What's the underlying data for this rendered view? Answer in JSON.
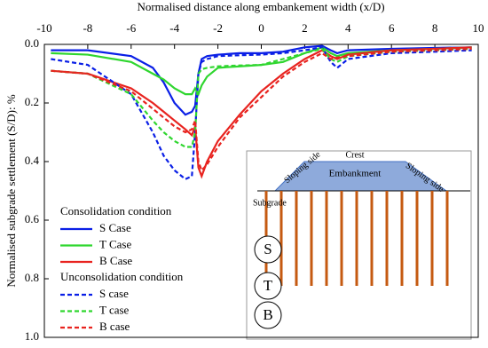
{
  "chart_data": {
    "type": "line",
    "x_label": "Normalised distance along embankement width (x/D)",
    "y_label": "Normalised subgrade settlement (S/D): %",
    "xlim": [
      -10,
      10
    ],
    "xticks": [
      -10,
      -8,
      -6,
      -4,
      -2,
      0,
      2,
      4,
      6,
      8,
      10
    ],
    "ylim": [
      0,
      1
    ],
    "y_inverted": true,
    "yticks": [
      {
        "value": 0,
        "label": "0.0"
      },
      0.2,
      0.4,
      0.6,
      0.8,
      {
        "value": 1,
        "label": "1.0"
      }
    ],
    "legend_titles": [
      "Consolidation condition",
      "Unconsolidation condition"
    ],
    "x": [
      -9.7,
      -8,
      -6,
      -5,
      -4.5,
      -4,
      -3.5,
      -3.2,
      -3.05,
      -2.9,
      -2.75,
      -2.5,
      -2,
      -1,
      0,
      1,
      2,
      2.8,
      3.2,
      3.5,
      4,
      6,
      8,
      9.7
    ],
    "series": [
      {
        "name": "S Case",
        "color": "#0a1fe6",
        "dash": false,
        "values": [
          0.02,
          0.02,
          0.04,
          0.08,
          0.13,
          0.2,
          0.24,
          0.23,
          0.21,
          0.1,
          0.05,
          0.04,
          0.035,
          0.03,
          0.03,
          0.025,
          0.01,
          0.005,
          0.02,
          0.03,
          0.02,
          0.015,
          0.012,
          0.01
        ]
      },
      {
        "name": "T Case",
        "color": "#2fd62f",
        "dash": false,
        "values": [
          0.03,
          0.035,
          0.06,
          0.1,
          0.12,
          0.15,
          0.17,
          0.17,
          0.15,
          0.17,
          0.14,
          0.11,
          0.08,
          0.075,
          0.07,
          0.06,
          0.03,
          0.01,
          0.03,
          0.04,
          0.03,
          0.02,
          0.015,
          0.01
        ]
      },
      {
        "name": "B Case",
        "color": "#e8231f",
        "dash": false,
        "values": [
          0.09,
          0.1,
          0.15,
          0.2,
          0.23,
          0.26,
          0.29,
          0.31,
          0.28,
          0.42,
          0.45,
          0.4,
          0.33,
          0.24,
          0.16,
          0.1,
          0.05,
          0.02,
          0.04,
          0.05,
          0.035,
          0.02,
          0.015,
          0.01
        ]
      },
      {
        "name": "S case",
        "color": "#0a1fe6",
        "dash": true,
        "values": [
          0.05,
          0.07,
          0.17,
          0.3,
          0.38,
          0.43,
          0.46,
          0.45,
          0.3,
          0.1,
          0.06,
          0.05,
          0.04,
          0.037,
          0.035,
          0.03,
          0.02,
          0.01,
          0.06,
          0.08,
          0.05,
          0.03,
          0.025,
          0.02
        ]
      },
      {
        "name": "T case",
        "color": "#2fd62f",
        "dash": true,
        "values": [
          0.09,
          0.1,
          0.17,
          0.26,
          0.3,
          0.33,
          0.35,
          0.35,
          0.3,
          0.1,
          0.085,
          0.08,
          0.075,
          0.072,
          0.07,
          0.05,
          0.03,
          0.015,
          0.05,
          0.06,
          0.04,
          0.025,
          0.02,
          0.015
        ]
      },
      {
        "name": "B case",
        "color": "#e8231f",
        "dash": true,
        "values": [
          0.09,
          0.1,
          0.16,
          0.22,
          0.25,
          0.28,
          0.3,
          0.29,
          0.26,
          0.4,
          0.43,
          0.41,
          0.35,
          0.25,
          0.18,
          0.11,
          0.06,
          0.03,
          0.05,
          0.045,
          0.04,
          0.025,
          0.02,
          0.015
        ]
      }
    ],
    "inset": {
      "crest": "Crest",
      "embankment": "Embankment",
      "slope_left": "Sloping side",
      "slope_right": "Sloping side",
      "subgrade": "Subgrade",
      "circles": [
        "S",
        "T",
        "B"
      ]
    }
  }
}
